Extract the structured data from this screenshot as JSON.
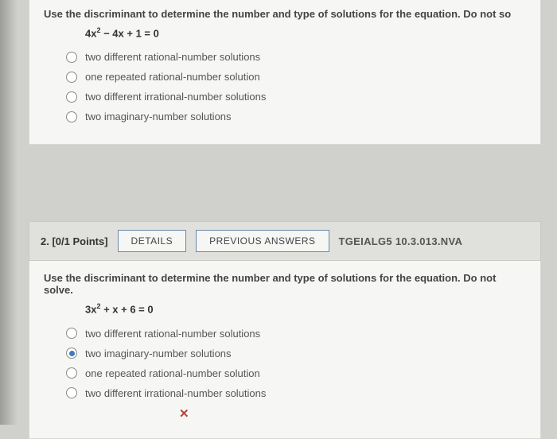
{
  "question1": {
    "prompt": "Use the discriminant to determine the number and type of solutions for the equation. Do not so",
    "equation_html": "4x<sup>2</sup> − 4x + 1 = 0",
    "options": [
      {
        "label": "two different rational-number solutions",
        "selected": false
      },
      {
        "label": "one repeated rational-number solution",
        "selected": false
      },
      {
        "label": "two different irrational-number solutions",
        "selected": false
      },
      {
        "label": "two imaginary-number solutions",
        "selected": false
      }
    ]
  },
  "question2": {
    "header": {
      "num_points": "2. [0/1 Points]",
      "details_btn": "DETAILS",
      "prev_btn": "PREVIOUS ANSWERS",
      "ref": "TGEIALG5 10.3.013.NVA"
    },
    "prompt": "Use the discriminant to determine the number and type of solutions for the equation. Do not solve.",
    "equation_html": "3x<sup>2</sup> + x + 6 = 0",
    "options": [
      {
        "label": "two different rational-number solutions",
        "selected": false
      },
      {
        "label": "two imaginary-number solutions",
        "selected": true
      },
      {
        "label": "one repeated rational-number solution",
        "selected": false
      },
      {
        "label": "two different irrational-number solutions",
        "selected": false
      }
    ],
    "wrong_mark": "✕"
  },
  "colors": {
    "page_bg": "#d0d0cc",
    "panel_bg": "#f6f6f4",
    "header_bg": "#e0e0dc",
    "radio_selected": "#3b7bbf",
    "wrong": "#b7433b",
    "btn_border": "#6a8aa8"
  }
}
